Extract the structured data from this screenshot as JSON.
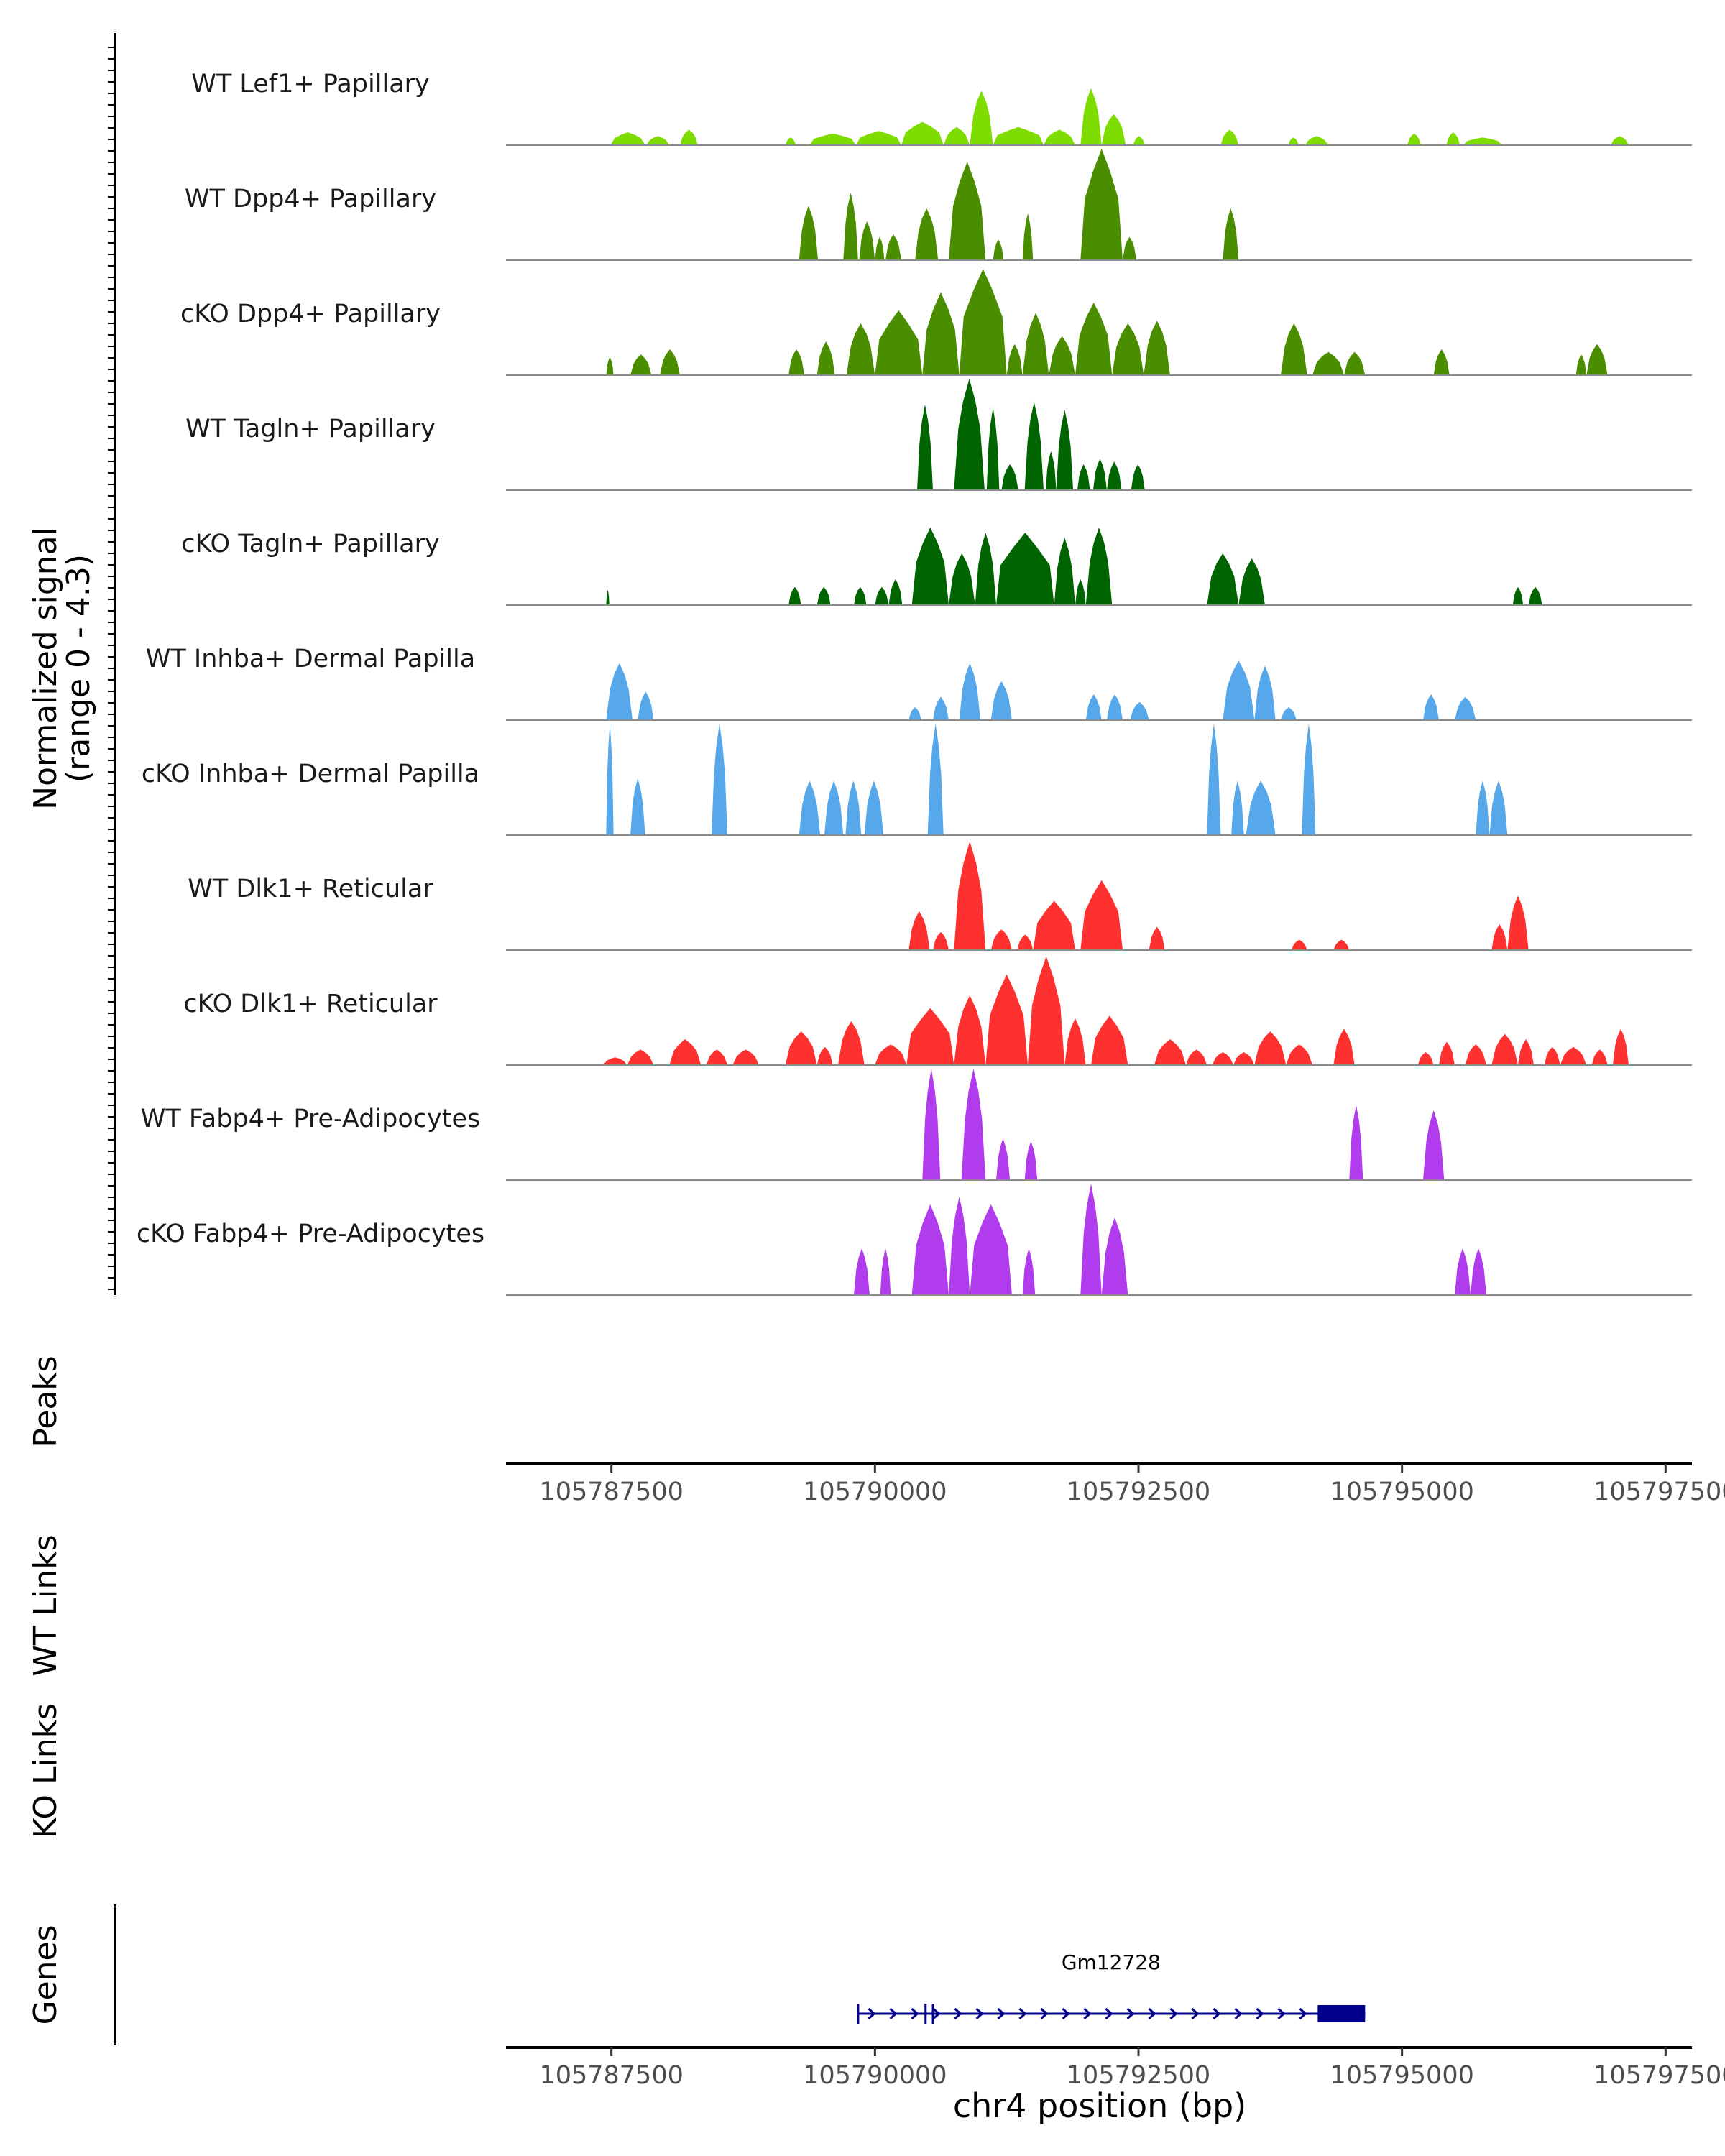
{
  "chart_data": {
    "type": "area",
    "title": "",
    "chromosome": "chr4",
    "xlabel": "chr4 position (bp)",
    "xlim": [
      105786500,
      105797750
    ],
    "x_ticks": [
      105787500,
      105790000,
      105792500,
      105795000,
      105797500
    ],
    "x_tick_labels": [
      "105787500",
      "105790000",
      "105792500",
      "105795000",
      "105797500"
    ],
    "ylabel_line1": "Normalized signal",
    "ylabel_line2": "(range 0 - 4.3)",
    "ylim": [
      0,
      4.3
    ],
    "panel_labels": {
      "peaks": "Peaks",
      "wt_links": "WT Links",
      "ko_links": "KO Links",
      "genes": "Genes"
    },
    "gene": {
      "name": "Gm12728",
      "start": 105789830,
      "end": 105794650,
      "strand": "+",
      "exons": [
        [
          105789830,
          105789850
        ],
        [
          105790470,
          105790490
        ],
        [
          105790540,
          105790560
        ],
        [
          105794200,
          105794650
        ]
      ],
      "color": "#00008b"
    },
    "series": [
      {
        "name": "WT Lef1+ Papillary",
        "color": "#7fdc00",
        "peaks": [
          [
            105787490,
            105787820,
            0.5
          ],
          [
            105787830,
            105788050,
            0.35
          ],
          [
            105788150,
            105788320,
            0.6
          ],
          [
            105789150,
            105789250,
            0.3
          ],
          [
            105789380,
            105789820,
            0.45
          ],
          [
            105789820,
            105790250,
            0.55
          ],
          [
            105790250,
            105790650,
            0.9
          ],
          [
            105790650,
            105790900,
            0.7
          ],
          [
            105790900,
            105791120,
            2.1
          ],
          [
            105791120,
            105791600,
            0.7
          ],
          [
            105791600,
            105791900,
            0.6
          ],
          [
            105791950,
            105792150,
            2.2
          ],
          [
            105792150,
            105792380,
            1.2
          ],
          [
            105792450,
            105792560,
            0.35
          ],
          [
            105793280,
            105793450,
            0.6
          ],
          [
            105793920,
            105794020,
            0.3
          ],
          [
            105794080,
            105794300,
            0.35
          ],
          [
            105795050,
            105795180,
            0.45
          ],
          [
            105795420,
            105795550,
            0.5
          ],
          [
            105795580,
            105795950,
            0.3
          ],
          [
            105796980,
            105797150,
            0.35
          ]
        ]
      },
      {
        "name": "WT Dpp4+ Papillary",
        "color": "#4a8e00",
        "peaks": [
          [
            105789280,
            105789460,
            2.1
          ],
          [
            105789700,
            105789840,
            2.6
          ],
          [
            105789850,
            105790000,
            1.5
          ],
          [
            105790000,
            105790090,
            0.9
          ],
          [
            105790100,
            105790250,
            1.0
          ],
          [
            105790380,
            105790600,
            2.0
          ],
          [
            105790700,
            105791050,
            3.8
          ],
          [
            105791120,
            105791220,
            0.8
          ],
          [
            105791400,
            105791500,
            1.8
          ],
          [
            105791950,
            105792350,
            4.3
          ],
          [
            105792350,
            105792480,
            0.9
          ],
          [
            105793300,
            105793450,
            2.0
          ]
        ]
      },
      {
        "name": "cKO Dpp4+ Papillary",
        "color": "#4a8e00",
        "peaks": [
          [
            105787450,
            105787520,
            0.7
          ],
          [
            105787680,
            105787880,
            0.8
          ],
          [
            105787960,
            105788150,
            1.0
          ],
          [
            105789180,
            105789330,
            1.0
          ],
          [
            105789450,
            105789620,
            1.3
          ],
          [
            105789730,
            105790000,
            2.0
          ],
          [
            105790000,
            105790450,
            2.5
          ],
          [
            105790450,
            105790800,
            3.2
          ],
          [
            105790800,
            105791250,
            4.1
          ],
          [
            105791250,
            105791400,
            1.2
          ],
          [
            105791400,
            105791650,
            2.4
          ],
          [
            105791650,
            105791900,
            1.5
          ],
          [
            105791900,
            105792250,
            2.8
          ],
          [
            105792250,
            105792550,
            2.0
          ],
          [
            105792550,
            105792800,
            2.1
          ],
          [
            105793850,
            105794100,
            2.0
          ],
          [
            105794150,
            105794450,
            0.9
          ],
          [
            105794450,
            105794650,
            0.9
          ],
          [
            105795300,
            105795450,
            1.0
          ],
          [
            105796650,
            105796750,
            0.8
          ],
          [
            105796750,
            105796950,
            1.2
          ]
        ]
      },
      {
        "name": "WT Tagln+ Papillary",
        "color": "#006400",
        "peaks": [
          [
            105790400,
            105790550,
            3.3
          ],
          [
            105790750,
            105791040,
            4.3
          ],
          [
            105791060,
            105791180,
            3.2
          ],
          [
            105791200,
            105791360,
            1.0
          ],
          [
            105791420,
            105791600,
            3.4
          ],
          [
            105791620,
            105791720,
            1.5
          ],
          [
            105791720,
            105791880,
            3.1
          ],
          [
            105791920,
            105792040,
            1.0
          ],
          [
            105792070,
            105792200,
            1.2
          ],
          [
            105792200,
            105792340,
            1.1
          ],
          [
            105792430,
            105792560,
            1.0
          ]
        ]
      },
      {
        "name": "cKO Tagln+ Papillary",
        "color": "#006400",
        "peaks": [
          [
            105787450,
            105787480,
            0.6
          ],
          [
            105789180,
            105789300,
            0.7
          ],
          [
            105789450,
            105789580,
            0.7
          ],
          [
            105789800,
            105789920,
            0.7
          ],
          [
            105790000,
            105790130,
            0.7
          ],
          [
            105790130,
            105790260,
            1.0
          ],
          [
            105790350,
            105790700,
            3.0
          ],
          [
            105790700,
            105790950,
            2.0
          ],
          [
            105790950,
            105791150,
            2.8
          ],
          [
            105791150,
            105791700,
            2.8
          ],
          [
            105791700,
            105791900,
            2.6
          ],
          [
            105791900,
            105792000,
            1.0
          ],
          [
            105792000,
            105792250,
            3.0
          ],
          [
            105793150,
            105793450,
            2.0
          ],
          [
            105793450,
            105793700,
            1.8
          ],
          [
            105796050,
            105796150,
            0.7
          ],
          [
            105796200,
            105796330,
            0.7
          ]
        ]
      },
      {
        "name": "WT Inhba+ Dermal Papilla",
        "color": "#56a8ea",
        "peaks": [
          [
            105787450,
            105787700,
            2.2
          ],
          [
            105787750,
            105787900,
            1.1
          ],
          [
            105790320,
            105790440,
            0.5
          ],
          [
            105790550,
            105790700,
            0.9
          ],
          [
            105790800,
            105791000,
            2.2
          ],
          [
            105791100,
            105791300,
            1.5
          ],
          [
            105792000,
            105792150,
            1.0
          ],
          [
            105792200,
            105792350,
            1.0
          ],
          [
            105792420,
            105792600,
            0.7
          ],
          [
            105793300,
            105793600,
            2.3
          ],
          [
            105793600,
            105793800,
            2.1
          ],
          [
            105793850,
            105794000,
            0.5
          ],
          [
            105795200,
            105795350,
            1.0
          ],
          [
            105795500,
            105795700,
            0.9
          ]
        ]
      },
      {
        "name": "cKO Inhba+ Dermal Papilla",
        "color": "#56a8ea",
        "peaks": [
          [
            105787450,
            105787520,
            4.3
          ],
          [
            105787680,
            105787820,
            2.2
          ],
          [
            105788450,
            105788600,
            4.3
          ],
          [
            105789280,
            105789480,
            2.1
          ],
          [
            105789520,
            105789700,
            2.1
          ],
          [
            105789720,
            105789870,
            2.1
          ],
          [
            105789900,
            105790080,
            2.1
          ],
          [
            105790500,
            105790650,
            4.3
          ],
          [
            105793150,
            105793280,
            4.3
          ],
          [
            105793380,
            105793500,
            2.1
          ],
          [
            105793520,
            105793800,
            2.1
          ],
          [
            105794050,
            105794180,
            4.3
          ],
          [
            105795700,
            105795830,
            2.1
          ],
          [
            105795830,
            105796000,
            2.1
          ]
        ]
      },
      {
        "name": "WT Dlk1+ Reticular",
        "color": "#ff3030",
        "peaks": [
          [
            105790320,
            105790520,
            1.5
          ],
          [
            105790550,
            105790700,
            0.7
          ],
          [
            105790750,
            105791050,
            4.2
          ],
          [
            105791100,
            105791300,
            0.8
          ],
          [
            105791350,
            105791500,
            0.6
          ],
          [
            105791500,
            105791900,
            1.9
          ],
          [
            105791950,
            105792350,
            2.7
          ],
          [
            105792600,
            105792750,
            0.9
          ],
          [
            105793950,
            105794100,
            0.4
          ],
          [
            105794350,
            105794500,
            0.4
          ],
          [
            105795850,
            105796000,
            1.0
          ],
          [
            105796000,
            105796200,
            2.1
          ]
        ]
      },
      {
        "name": "cKO Dlk1+ Reticular",
        "color": "#ff3030",
        "peaks": [
          [
            105787420,
            105787650,
            0.3
          ],
          [
            105787650,
            105787900,
            0.6
          ],
          [
            105788050,
            105788350,
            1.0
          ],
          [
            105788400,
            105788600,
            0.6
          ],
          [
            105788650,
            105788900,
            0.6
          ],
          [
            105789150,
            105789450,
            1.3
          ],
          [
            105789450,
            105789600,
            0.7
          ],
          [
            105789650,
            105789900,
            1.7
          ],
          [
            105790000,
            105790300,
            0.8
          ],
          [
            105790300,
            105790750,
            2.2
          ],
          [
            105790750,
            105791050,
            2.7
          ],
          [
            105791050,
            105791450,
            3.5
          ],
          [
            105791450,
            105791800,
            4.2
          ],
          [
            105791800,
            105792000,
            1.8
          ],
          [
            105792050,
            105792400,
            1.9
          ],
          [
            105792650,
            105792950,
            1.0
          ],
          [
            105792950,
            105793150,
            0.6
          ],
          [
            105793200,
            105793400,
            0.5
          ],
          [
            105793400,
            105793600,
            0.5
          ],
          [
            105793600,
            105793900,
            1.3
          ],
          [
            105793900,
            105794150,
            0.8
          ],
          [
            105794350,
            105794550,
            1.4
          ],
          [
            105795150,
            105795300,
            0.5
          ],
          [
            105795350,
            105795500,
            0.9
          ],
          [
            105795600,
            105795800,
            0.8
          ],
          [
            105795850,
            105796100,
            1.2
          ],
          [
            105796100,
            105796250,
            1.0
          ],
          [
            105796350,
            105796500,
            0.7
          ],
          [
            105796500,
            105796750,
            0.7
          ],
          [
            105796800,
            105796950,
            0.6
          ],
          [
            105797000,
            105797150,
            1.4
          ]
        ]
      },
      {
        "name": "WT Fabp4+ Pre-Adipocytes",
        "color": "#b13ced",
        "peaks": [
          [
            105790450,
            105790620,
            4.3
          ],
          [
            105790820,
            105791050,
            4.3
          ],
          [
            105791150,
            105791280,
            1.6
          ],
          [
            105791420,
            105791540,
            1.5
          ],
          [
            105794500,
            105794630,
            2.9
          ],
          [
            105795200,
            105795400,
            2.7
          ]
        ]
      },
      {
        "name": "cKO Fabp4+ Pre-Adipocytes",
        "color": "#b13ced",
        "peaks": [
          [
            105789800,
            105789950,
            1.8
          ],
          [
            105790050,
            105790150,
            1.8
          ],
          [
            105790350,
            105790700,
            3.5
          ],
          [
            105790700,
            105790900,
            3.8
          ],
          [
            105790900,
            105791300,
            3.5
          ],
          [
            105791400,
            105791520,
            1.8
          ],
          [
            105791950,
            105792150,
            4.3
          ],
          [
            105792150,
            105792400,
            3.0
          ],
          [
            105795500,
            105795650,
            1.8
          ],
          [
            105795650,
            105795800,
            1.8
          ]
        ]
      }
    ]
  }
}
